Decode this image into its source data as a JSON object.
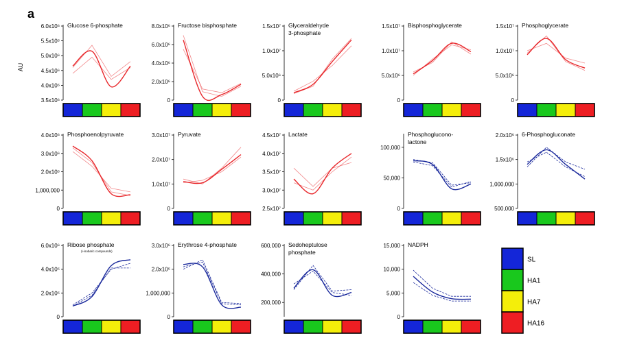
{
  "figure": {
    "panel_label": "a",
    "y_axis_label": "AU",
    "colors": {
      "red": "#e8262a",
      "blue": "#1b2a9c",
      "SL": "#1426d8",
      "HA1": "#19c81d",
      "HA7": "#f4ee0a",
      "HA16": "#ee1e23"
    },
    "legend": [
      {
        "name": "SL",
        "color": "#1426d8"
      },
      {
        "name": "HA1",
        "color": "#19c81d"
      },
      {
        "name": "HA7",
        "color": "#f4ee0a"
      },
      {
        "name": "HA16",
        "color": "#ee1e23"
      }
    ]
  },
  "chart_data": [
    {
      "type": "line",
      "title": [
        "Glucose 6-phosphate"
      ],
      "color": "red",
      "x": [
        "SL",
        "HA1",
        "HA7",
        "HA16"
      ],
      "ylim": [
        3500000,
        6000000
      ],
      "yticks": [
        [
          3500000,
          "3.5x10⁶"
        ],
        [
          4000000,
          "4.0x10⁶"
        ],
        [
          4500000,
          "4.5x10⁶"
        ],
        [
          5000000,
          "5.0x10⁶"
        ],
        [
          5500000,
          "5.5x10⁶"
        ],
        [
          6000000,
          "6.0x10⁶"
        ]
      ],
      "series": [
        {
          "values": [
            4650000,
            5150000,
            3950000,
            4650000
          ],
          "style": "fit"
        },
        {
          "values": [
            4400000,
            4950000,
            4200000,
            4600000
          ],
          "style": "replicate"
        },
        {
          "values": [
            4600000,
            5350000,
            4300000,
            4800000
          ],
          "style": "replicate"
        }
      ]
    },
    {
      "type": "line",
      "title": [
        "Fructose bisphosphate"
      ],
      "color": "red",
      "x": [
        "SL",
        "HA1",
        "HA7",
        "HA16"
      ],
      "ylim": [
        0,
        8000000
      ],
      "yticks": [
        [
          0,
          "0"
        ],
        [
          2000000,
          "2.0x10⁶"
        ],
        [
          4000000,
          "4.0x10⁶"
        ],
        [
          6000000,
          "6.0x10⁶"
        ],
        [
          8000000,
          "8.0x10⁶"
        ]
      ],
      "series": [
        {
          "values": [
            6500000,
            400000,
            600000,
            1700000
          ],
          "style": "fit"
        },
        {
          "values": [
            5500000,
            1200000,
            800000,
            1800000
          ],
          "style": "replicate"
        },
        {
          "values": [
            7000000,
            900000,
            400000,
            1500000
          ],
          "style": "replicate"
        }
      ]
    },
    {
      "type": "line",
      "title": [
        "Glyceraldehyde",
        "3-phosphate"
      ],
      "color": "red",
      "x": [
        "SL",
        "HA1",
        "HA7",
        "HA16"
      ],
      "ylim": [
        0,
        15000000
      ],
      "yticks": [
        [
          0,
          "0"
        ],
        [
          5000000,
          "5.0x10⁶"
        ],
        [
          10000000,
          "1.0x10⁷"
        ],
        [
          15000000,
          "1.5x10⁷"
        ]
      ],
      "series": [
        {
          "values": [
            1500000,
            3200000,
            7800000,
            12200000
          ],
          "style": "fit"
        },
        {
          "values": [
            1800000,
            3800000,
            7000000,
            11000000
          ],
          "style": "replicate"
        },
        {
          "values": [
            1300000,
            2800000,
            8300000,
            12500000
          ],
          "style": "replicate"
        }
      ]
    },
    {
      "type": "line",
      "title": [
        "Bisphosphoglycerate"
      ],
      "color": "red",
      "x": [
        "SL",
        "HA1",
        "HA7",
        "HA16"
      ],
      "ylim": [
        0,
        15000000
      ],
      "yticks": [
        [
          0,
          "0"
        ],
        [
          5000000,
          "5.0x10⁶"
        ],
        [
          10000000,
          "1.0x10⁷"
        ],
        [
          15000000,
          "1.5x10⁷"
        ]
      ],
      "series": [
        {
          "values": [
            5300000,
            8000000,
            11500000,
            9800000
          ],
          "style": "fit"
        },
        {
          "values": [
            5000000,
            8300000,
            11200000,
            10200000
          ],
          "style": "replicate"
        },
        {
          "values": [
            5700000,
            7600000,
            11800000,
            9300000
          ],
          "style": "replicate"
        }
      ]
    },
    {
      "type": "line",
      "title": [
        "Phosphoglycerate"
      ],
      "color": "red",
      "x": [
        "SL",
        "HA1",
        "HA7",
        "HA16"
      ],
      "ylim": [
        0,
        15000000
      ],
      "yticks": [
        [
          0,
          "0"
        ],
        [
          5000000,
          "5.0x10⁶"
        ],
        [
          10000000,
          "1.0x10⁷"
        ],
        [
          15000000,
          "1.5x10⁷"
        ]
      ],
      "series": [
        {
          "values": [
            9200000,
            12500000,
            8200000,
            6500000
          ],
          "style": "fit"
        },
        {
          "values": [
            10000000,
            11500000,
            8500000,
            7500000
          ],
          "style": "replicate"
        },
        {
          "values": [
            9500000,
            13000000,
            7800000,
            6000000
          ],
          "style": "replicate"
        }
      ]
    },
    {
      "type": "line",
      "title": [
        "Phosphoenolpyruvate"
      ],
      "color": "red",
      "x": [
        "SL",
        "HA1",
        "HA7",
        "HA16"
      ],
      "ylim": [
        0,
        4000000
      ],
      "yticks": [
        [
          0,
          "0"
        ],
        [
          1000000,
          "1,000,000"
        ],
        [
          2000000,
          "2.0x10⁶"
        ],
        [
          3000000,
          "3.0x10⁶"
        ],
        [
          4000000,
          "4.0x10⁶"
        ]
      ],
      "series": [
        {
          "values": [
            3400000,
            2600000,
            800000,
            750000
          ],
          "style": "fit"
        },
        {
          "values": [
            3100000,
            2300000,
            1100000,
            900000
          ],
          "style": "replicate"
        },
        {
          "values": [
            3300000,
            2500000,
            900000,
            700000
          ],
          "style": "replicate"
        }
      ]
    },
    {
      "type": "line",
      "title": [
        "Pyruvate"
      ],
      "color": "red",
      "x": [
        "SL",
        "HA1",
        "HA7",
        "HA16"
      ],
      "ylim": [
        0,
        30000000
      ],
      "yticks": [
        [
          0,
          "0"
        ],
        [
          10000000,
          "1.0x10⁷"
        ],
        [
          20000000,
          "2.0x10⁷"
        ],
        [
          30000000,
          "3.0x10⁷"
        ]
      ],
      "series": [
        {
          "values": [
            11000000,
            10500000,
            16000000,
            22000000
          ],
          "style": "fit"
        },
        {
          "values": [
            12000000,
            10000000,
            16500000,
            25000000
          ],
          "style": "replicate"
        },
        {
          "values": [
            10500000,
            11500000,
            15000000,
            21000000
          ],
          "style": "replicate"
        }
      ]
    },
    {
      "type": "line",
      "title": [
        "Lactate"
      ],
      "color": "red",
      "x": [
        "SL",
        "HA1",
        "HA7",
        "HA16"
      ],
      "ylim": [
        25000000,
        45000000
      ],
      "yticks": [
        [
          25000000,
          "2.5x10⁷"
        ],
        [
          30000000,
          "3.0x10⁷"
        ],
        [
          35000000,
          "3.5x10⁷"
        ],
        [
          40000000,
          "4.0x10⁷"
        ],
        [
          45000000,
          "4.5x10⁷"
        ]
      ],
      "series": [
        {
          "values": [
            33000000,
            29000000,
            36000000,
            40000000
          ],
          "style": "fit"
        },
        {
          "values": [
            36000000,
            31000000,
            36000000,
            37500000
          ],
          "style": "replicate"
        },
        {
          "values": [
            32000000,
            30000000,
            35000000,
            39000000
          ],
          "style": "replicate"
        }
      ]
    },
    {
      "type": "line",
      "title": [
        "Phosphoglucono-",
        "lactone"
      ],
      "color": "blue",
      "x": [
        "SL",
        "HA1",
        "HA7",
        "HA16"
      ],
      "ylim": [
        0,
        120000
      ],
      "yticks": [
        [
          0,
          "0"
        ],
        [
          50000,
          "50,000"
        ],
        [
          100000,
          "100,000"
        ]
      ],
      "series": [
        {
          "values": [
            78000,
            72000,
            32000,
            40000
          ],
          "style": "fit"
        },
        {
          "values": [
            80000,
            75000,
            38000,
            42000
          ],
          "style": "replicate"
        },
        {
          "values": [
            76000,
            70000,
            35000,
            44000
          ],
          "style": "replicate"
        }
      ]
    },
    {
      "type": "line",
      "title": [
        "6-Phosphogluconate"
      ],
      "color": "blue",
      "x": [
        "SL",
        "HA1",
        "HA7",
        "HA16"
      ],
      "ylim": [
        500000,
        2000000
      ],
      "yticks": [
        [
          500000,
          "500,000"
        ],
        [
          1000000,
          "1,000,000"
        ],
        [
          1500000,
          "1.5x10⁶"
        ],
        [
          2000000,
          "2.0x10⁶"
        ]
      ],
      "series": [
        {
          "values": [
            1400000,
            1700000,
            1400000,
            1100000
          ],
          "style": "fit"
        },
        {
          "values": [
            1350000,
            1750000,
            1450000,
            1300000
          ],
          "style": "replicate"
        },
        {
          "values": [
            1450000,
            1650000,
            1350000,
            1150000
          ],
          "style": "replicate"
        }
      ]
    },
    {
      "type": "line",
      "title": [
        "Ribose phosphate"
      ],
      "note": "(+isobaric compounds)",
      "color": "blue",
      "x": [
        "SL",
        "HA1",
        "HA7",
        "HA16"
      ],
      "ylim": [
        0,
        6000000
      ],
      "yticks": [
        [
          0,
          "0"
        ],
        [
          2000000,
          "2.0x10⁶"
        ],
        [
          4000000,
          "4.0x10⁶"
        ],
        [
          6000000,
          "6.0x10⁶"
        ]
      ],
      "series": [
        {
          "values": [
            900000,
            1700000,
            4300000,
            4800000
          ],
          "style": "fit"
        },
        {
          "values": [
            1000000,
            2000000,
            4000000,
            4500000
          ],
          "style": "replicate"
        },
        {
          "values": [
            900000,
            1800000,
            4100000,
            4100000
          ],
          "style": "replicate"
        }
      ]
    },
    {
      "type": "line",
      "title": [
        "Erythrose 4-phosphate"
      ],
      "color": "blue",
      "x": [
        "SL",
        "HA1",
        "HA7",
        "HA16"
      ],
      "ylim": [
        0,
        3000000
      ],
      "yticks": [
        [
          0,
          "0"
        ],
        [
          1000000,
          "1,000,000"
        ],
        [
          2000000,
          "2.0x10⁶"
        ],
        [
          3000000,
          "3.0x10⁶"
        ]
      ],
      "series": [
        {
          "values": [
            2200000,
            2100000,
            500000,
            400000
          ],
          "style": "fit"
        },
        {
          "values": [
            2000000,
            2400000,
            600000,
            550000
          ],
          "style": "replicate"
        },
        {
          "values": [
            2100000,
            2300000,
            550000,
            500000
          ],
          "style": "replicate"
        }
      ]
    },
    {
      "type": "line",
      "title": [
        "Sedoheptulose",
        "phosphate"
      ],
      "color": "blue",
      "x": [
        "SL",
        "HA1",
        "HA7",
        "HA16"
      ],
      "ylim": [
        100000,
        600000
      ],
      "yticks": [
        [
          200000,
          "200,000"
        ],
        [
          400000,
          "400,000"
        ],
        [
          600000,
          "600,000"
        ]
      ],
      "series": [
        {
          "values": [
            300000,
            430000,
            250000,
            270000
          ],
          "style": "fit"
        },
        {
          "values": [
            290000,
            460000,
            280000,
            290000
          ],
          "style": "replicate"
        },
        {
          "values": [
            330000,
            420000,
            270000,
            250000
          ],
          "style": "replicate"
        }
      ]
    },
    {
      "type": "line",
      "title": [
        "NADPH"
      ],
      "color": "blue",
      "x": [
        "SL",
        "HA1",
        "HA7",
        "HA16"
      ],
      "ylim": [
        0,
        15000
      ],
      "yticks": [
        [
          0,
          "0"
        ],
        [
          5000,
          "5,000"
        ],
        [
          10000,
          "10,000"
        ],
        [
          15000,
          "15,000"
        ]
      ],
      "series": [
        {
          "values": [
            8500,
            5200,
            3800,
            3700
          ],
          "style": "fit"
        },
        {
          "values": [
            9800,
            6000,
            4300,
            4300
          ],
          "style": "replicate"
        },
        {
          "values": [
            7200,
            4500,
            3300,
            3300
          ],
          "style": "replicate"
        }
      ]
    }
  ]
}
